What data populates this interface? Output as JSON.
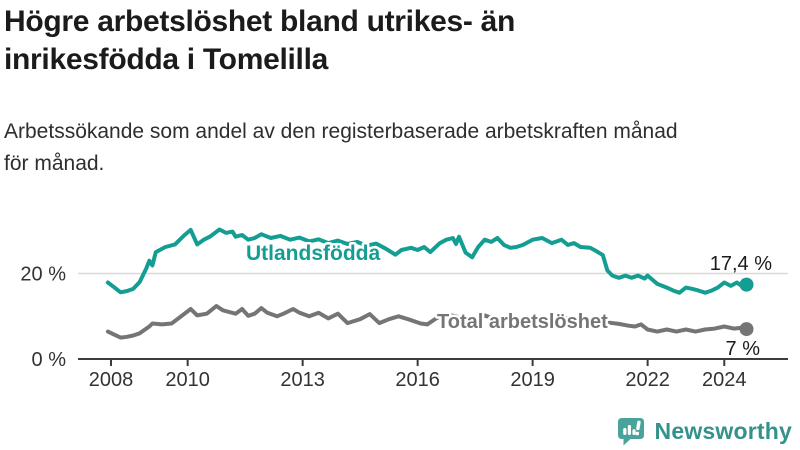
{
  "header": {
    "title_lines": [
      "Högre arbetslöshet bland utrikes- än",
      "inrikesfödda i Tomelilla"
    ],
    "subtitle_lines": [
      "Arbetssökande som andel av den registerbaserade arbetskraften månad",
      "för månad."
    ]
  },
  "chart_data": {
    "type": "line",
    "title": "Högre arbetslöshet bland utrikes- än inrikesfödda i Tomelilla",
    "subtitle": "Arbetssökande som andel av den registerbaserade arbetskraften månad för månad.",
    "xlabel": "",
    "ylabel": "",
    "xlim": [
      2007.75,
      2024.95
    ],
    "ylim": [
      0,
      38
    ],
    "grid": "horizontal-20-only",
    "legend": "inline-labels",
    "x_ticks": [
      {
        "year": 2008,
        "label": "2008"
      },
      {
        "year": 2010,
        "label": "2010"
      },
      {
        "year": 2013,
        "label": "2013"
      },
      {
        "year": 2016,
        "label": "2016"
      },
      {
        "year": 2019,
        "label": "2019"
      },
      {
        "year": 2022,
        "label": "2022"
      },
      {
        "year": 2024,
        "label": "2024"
      }
    ],
    "y_ticks": [
      {
        "value": 20,
        "label": "20 %",
        "gridline": true
      },
      {
        "value": 0,
        "label": "0 %",
        "gridline": false
      }
    ],
    "series": [
      {
        "name": "Utlandsfödda",
        "color": "#149e93",
        "end_label": "17,4 %",
        "last_value": 17.4,
        "points": [
          [
            2007.92,
            17.9
          ],
          [
            2008.08,
            16.8
          ],
          [
            2008.25,
            15.6
          ],
          [
            2008.42,
            15.9
          ],
          [
            2008.58,
            16.4
          ],
          [
            2008.75,
            18.0
          ],
          [
            2008.92,
            21.2
          ],
          [
            2009.0,
            23.0
          ],
          [
            2009.08,
            21.9
          ],
          [
            2009.17,
            25.0
          ],
          [
            2009.42,
            26.2
          ],
          [
            2009.67,
            26.8
          ],
          [
            2009.92,
            29.0
          ],
          [
            2010.08,
            30.2
          ],
          [
            2010.25,
            26.8
          ],
          [
            2010.42,
            27.9
          ],
          [
            2010.58,
            28.6
          ],
          [
            2010.83,
            30.3
          ],
          [
            2011.0,
            29.5
          ],
          [
            2011.17,
            29.8
          ],
          [
            2011.25,
            28.6
          ],
          [
            2011.42,
            29.0
          ],
          [
            2011.58,
            27.9
          ],
          [
            2011.75,
            28.3
          ],
          [
            2011.92,
            29.2
          ],
          [
            2012.17,
            28.3
          ],
          [
            2012.42,
            28.8
          ],
          [
            2012.67,
            27.9
          ],
          [
            2012.92,
            28.4
          ],
          [
            2013.17,
            27.5
          ],
          [
            2013.42,
            28.0
          ],
          [
            2013.67,
            27.1
          ],
          [
            2013.92,
            27.7
          ],
          [
            2014.17,
            26.9
          ],
          [
            2014.42,
            27.4
          ],
          [
            2014.67,
            26.5
          ],
          [
            2014.92,
            27.0
          ],
          [
            2015.17,
            25.8
          ],
          [
            2015.42,
            24.4
          ],
          [
            2015.58,
            25.5
          ],
          [
            2015.83,
            26.0
          ],
          [
            2016.0,
            25.5
          ],
          [
            2016.17,
            26.2
          ],
          [
            2016.33,
            25.0
          ],
          [
            2016.58,
            27.1
          ],
          [
            2016.75,
            27.9
          ],
          [
            2016.92,
            28.3
          ],
          [
            2017.0,
            26.9
          ],
          [
            2017.08,
            28.6
          ],
          [
            2017.25,
            24.9
          ],
          [
            2017.42,
            23.8
          ],
          [
            2017.58,
            26.2
          ],
          [
            2017.75,
            27.9
          ],
          [
            2017.92,
            27.4
          ],
          [
            2018.08,
            28.3
          ],
          [
            2018.25,
            26.7
          ],
          [
            2018.42,
            26.0
          ],
          [
            2018.58,
            26.2
          ],
          [
            2018.75,
            26.7
          ],
          [
            2019.0,
            27.9
          ],
          [
            2019.25,
            28.3
          ],
          [
            2019.5,
            27.1
          ],
          [
            2019.75,
            27.9
          ],
          [
            2019.92,
            26.7
          ],
          [
            2020.08,
            27.1
          ],
          [
            2020.25,
            26.2
          ],
          [
            2020.5,
            26.0
          ],
          [
            2020.67,
            25.2
          ],
          [
            2020.83,
            24.3
          ],
          [
            2020.95,
            20.7
          ],
          [
            2021.08,
            19.5
          ],
          [
            2021.25,
            19.0
          ],
          [
            2021.42,
            19.5
          ],
          [
            2021.58,
            19.0
          ],
          [
            2021.75,
            19.5
          ],
          [
            2021.92,
            18.8
          ],
          [
            2022.0,
            19.5
          ],
          [
            2022.25,
            17.6
          ],
          [
            2022.5,
            16.7
          ],
          [
            2022.67,
            16.0
          ],
          [
            2022.83,
            15.5
          ],
          [
            2023.0,
            16.7
          ],
          [
            2023.17,
            16.4
          ],
          [
            2023.33,
            16.0
          ],
          [
            2023.5,
            15.5
          ],
          [
            2023.67,
            16.0
          ],
          [
            2023.83,
            16.7
          ],
          [
            2024.0,
            17.9
          ],
          [
            2024.17,
            17.1
          ],
          [
            2024.33,
            17.9
          ],
          [
            2024.45,
            17.1
          ],
          [
            2024.58,
            17.4
          ]
        ]
      },
      {
        "name": "Total arbetslöshet",
        "color": "#757575",
        "end_label": "7 %",
        "last_value": 7,
        "points": [
          [
            2007.92,
            6.4
          ],
          [
            2008.08,
            5.7
          ],
          [
            2008.25,
            5.0
          ],
          [
            2008.42,
            5.2
          ],
          [
            2008.58,
            5.5
          ],
          [
            2008.75,
            6.0
          ],
          [
            2009.0,
            7.6
          ],
          [
            2009.08,
            8.3
          ],
          [
            2009.33,
            8.1
          ],
          [
            2009.58,
            8.3
          ],
          [
            2009.83,
            10.0
          ],
          [
            2010.08,
            11.7
          ],
          [
            2010.25,
            10.2
          ],
          [
            2010.5,
            10.6
          ],
          [
            2010.75,
            12.4
          ],
          [
            2010.92,
            11.4
          ],
          [
            2011.08,
            11.0
          ],
          [
            2011.25,
            10.6
          ],
          [
            2011.42,
            11.7
          ],
          [
            2011.58,
            10.1
          ],
          [
            2011.75,
            10.6
          ],
          [
            2011.92,
            11.9
          ],
          [
            2012.08,
            10.8
          ],
          [
            2012.33,
            10.0
          ],
          [
            2012.5,
            10.6
          ],
          [
            2012.75,
            11.7
          ],
          [
            2012.92,
            10.8
          ],
          [
            2013.17,
            10.0
          ],
          [
            2013.42,
            10.8
          ],
          [
            2013.67,
            9.5
          ],
          [
            2013.92,
            10.6
          ],
          [
            2014.17,
            8.4
          ],
          [
            2014.5,
            9.3
          ],
          [
            2014.75,
            10.5
          ],
          [
            2015.0,
            8.4
          ],
          [
            2015.25,
            9.3
          ],
          [
            2015.5,
            10.0
          ],
          [
            2015.75,
            9.3
          ],
          [
            2016.08,
            8.3
          ],
          [
            2016.25,
            8.1
          ],
          [
            2016.5,
            9.6
          ],
          [
            2016.75,
            10.4
          ],
          [
            2017.0,
            10.0
          ],
          [
            2017.25,
            8.8
          ],
          [
            2017.5,
            9.6
          ],
          [
            2017.75,
            10.2
          ],
          [
            2018.0,
            9.4
          ],
          [
            2018.25,
            8.8
          ],
          [
            2018.5,
            9.6
          ],
          [
            2018.75,
            9.0
          ],
          [
            2019.0,
            9.6
          ],
          [
            2019.25,
            8.6
          ],
          [
            2019.5,
            9.2
          ],
          [
            2019.75,
            9.8
          ],
          [
            2020.0,
            9.4
          ],
          [
            2020.25,
            9.9
          ],
          [
            2020.5,
            9.2
          ],
          [
            2020.75,
            8.8
          ],
          [
            2021.0,
            8.5
          ],
          [
            2021.25,
            8.2
          ],
          [
            2021.5,
            7.8
          ],
          [
            2021.67,
            7.6
          ],
          [
            2021.83,
            8.1
          ],
          [
            2022.0,
            6.9
          ],
          [
            2022.25,
            6.4
          ],
          [
            2022.5,
            6.9
          ],
          [
            2022.75,
            6.4
          ],
          [
            2023.0,
            6.9
          ],
          [
            2023.25,
            6.4
          ],
          [
            2023.5,
            6.9
          ],
          [
            2023.75,
            7.1
          ],
          [
            2024.0,
            7.6
          ],
          [
            2024.25,
            7.1
          ],
          [
            2024.45,
            7.3
          ],
          [
            2024.58,
            7.0
          ]
        ]
      }
    ]
  },
  "footer": {
    "brand": "Newsworthy",
    "brand_color": "#35918b",
    "icon": "bar-chart-speech-bubble-icon",
    "icon_color": "#4aa39b"
  },
  "colors": {
    "grid": "#d9d9d9",
    "axis": "#3c3c3c",
    "axis_text": "#333333",
    "value_label": "#1b1b1b",
    "title_text": "#1b1b1b",
    "subtitle_text": "#2e2e2e"
  }
}
